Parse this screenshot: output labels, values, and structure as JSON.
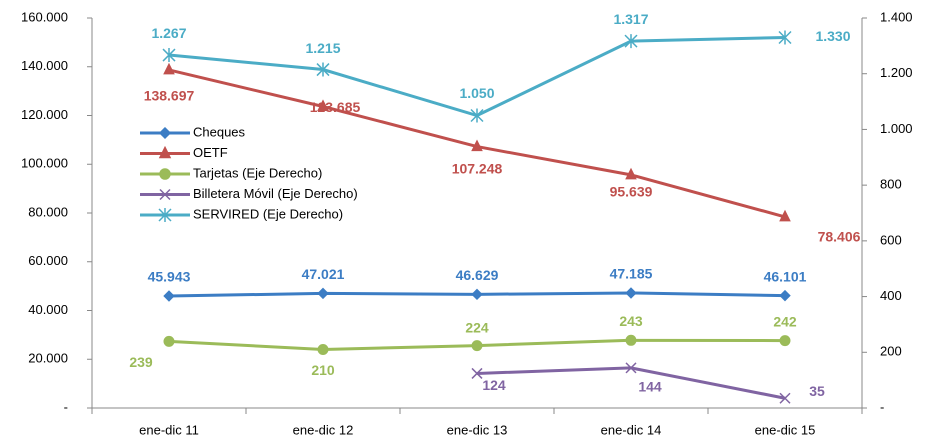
{
  "chart_data": {
    "type": "line",
    "categories": [
      "ene-dic 11",
      "ene-dic 12",
      "ene-dic 13",
      "ene-dic 14",
      "ene-dic 15"
    ],
    "ylim": [
      0,
      160000
    ],
    "yticks": [
      {
        "value": 0,
        "label": "-"
      },
      {
        "value": 20000,
        "label": "20.000"
      },
      {
        "value": 40000,
        "label": "40.000"
      },
      {
        "value": 60000,
        "label": "60.000"
      },
      {
        "value": 80000,
        "label": "80.000"
      },
      {
        "value": 100000,
        "label": "100.000"
      },
      {
        "value": 120000,
        "label": "120.000"
      },
      {
        "value": 140000,
        "label": "140.000"
      },
      {
        "value": 160000,
        "label": "160.000"
      }
    ],
    "y2lim": [
      0,
      1400
    ],
    "y2ticks": [
      {
        "value": 0,
        "label": "-"
      },
      200,
      400,
      600,
      800,
      {
        "value": 1000,
        "label": "1.000"
      },
      {
        "value": 1200,
        "label": "1.200"
      },
      {
        "value": 1400,
        "label": "1.400"
      }
    ],
    "legend": "center left",
    "series": [
      {
        "name": "Cheques",
        "color": "#3c7dc4",
        "marker": "diamond",
        "values": [
          45943,
          47021,
          46629,
          47185,
          46101
        ],
        "value_labels": [
          "45.943",
          "47.021",
          "46.629",
          "47.185",
          "46.101"
        ]
      },
      {
        "name": "OETF",
        "color": "#c0504d",
        "marker": "triangle",
        "values": [
          138697,
          123685,
          107248,
          95639,
          78406
        ],
        "value_labels": [
          "138.697",
          "123.685",
          "107.248",
          "95.639",
          "78.406"
        ]
      },
      {
        "name": "Tarjetas (Eje Derecho)",
        "color": "#9bbb59",
        "marker": "circle",
        "axis": "y2",
        "values": [
          239,
          210,
          224,
          243,
          242
        ]
      },
      {
        "name": "Billetera Móvil (Eje Derecho)",
        "color": "#8064a2",
        "marker": "x",
        "axis": "y2",
        "values": [
          null,
          null,
          124,
          144,
          35
        ]
      },
      {
        "name": "SERVIRED (Eje Derecho)",
        "color": "#4bacc6",
        "marker": "star",
        "axis": "y2",
        "values": [
          1267,
          1215,
          1050,
          1317,
          1330
        ],
        "value_labels": [
          "1.267",
          "1.215",
          "1.050",
          "1.317",
          "1.330"
        ]
      }
    ]
  }
}
